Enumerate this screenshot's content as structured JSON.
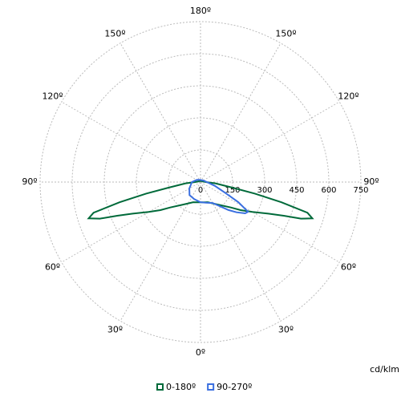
{
  "chart_data": {
    "type": "polar",
    "unit_label": "cd/klm",
    "ylim": [
      0,
      750
    ],
    "yticks": [
      0,
      150,
      300,
      450,
      600,
      750
    ],
    "angle_ticks": [
      {
        "value": 0,
        "label": "0º"
      },
      {
        "value": 30,
        "label": "30º"
      },
      {
        "value": 60,
        "label": "60º"
      },
      {
        "value": 90,
        "label": "90º"
      },
      {
        "value": 120,
        "label": "120º"
      },
      {
        "value": 150,
        "label": "150º"
      },
      {
        "value": 180,
        "label": "180º"
      },
      {
        "value": 210,
        "label": "150º"
      },
      {
        "value": 240,
        "label": "120º"
      },
      {
        "value": 270,
        "label": "90º"
      },
      {
        "value": 300,
        "label": "60º"
      },
      {
        "value": 330,
        "label": "30º"
      }
    ],
    "grid": true,
    "legend": "bottom",
    "series": [
      {
        "name": "0-180º",
        "color": "#006a3a",
        "x": [
          0,
          10,
          20,
          30,
          40,
          50,
          55,
          60,
          65,
          68,
          70,
          72,
          74,
          76,
          78,
          80,
          85,
          90,
          100,
          120,
          140,
          160,
          180,
          200,
          220,
          240,
          260,
          270,
          275,
          280,
          282,
          284,
          286,
          288,
          290,
          292,
          295,
          300,
          305,
          310,
          320,
          330,
          340,
          350
        ],
        "values": [
          95,
          96,
          100,
          115,
          140,
          185,
          229,
          280,
          350,
          420,
          500,
          550,
          520,
          390,
          260,
          150,
          70,
          25,
          12,
          8,
          6,
          5,
          5,
          5,
          6,
          8,
          12,
          25,
          70,
          150,
          260,
          390,
          520,
          550,
          500,
          420,
          350,
          280,
          229,
          185,
          140,
          115,
          100,
          96
        ]
      },
      {
        "name": "90-270º",
        "color": "#3a6fe0",
        "x": [
          0,
          15,
          30,
          45,
          50,
          55,
          58,
          62,
          66,
          75,
          90,
          120,
          150,
          180,
          210,
          240,
          270,
          300,
          320,
          340
        ],
        "values": [
          94,
          100,
          113,
          185,
          220,
          255,
          262,
          200,
          130,
          70,
          30,
          15,
          10,
          10,
          12,
          20,
          40,
          60,
          80,
          85
        ]
      }
    ]
  }
}
